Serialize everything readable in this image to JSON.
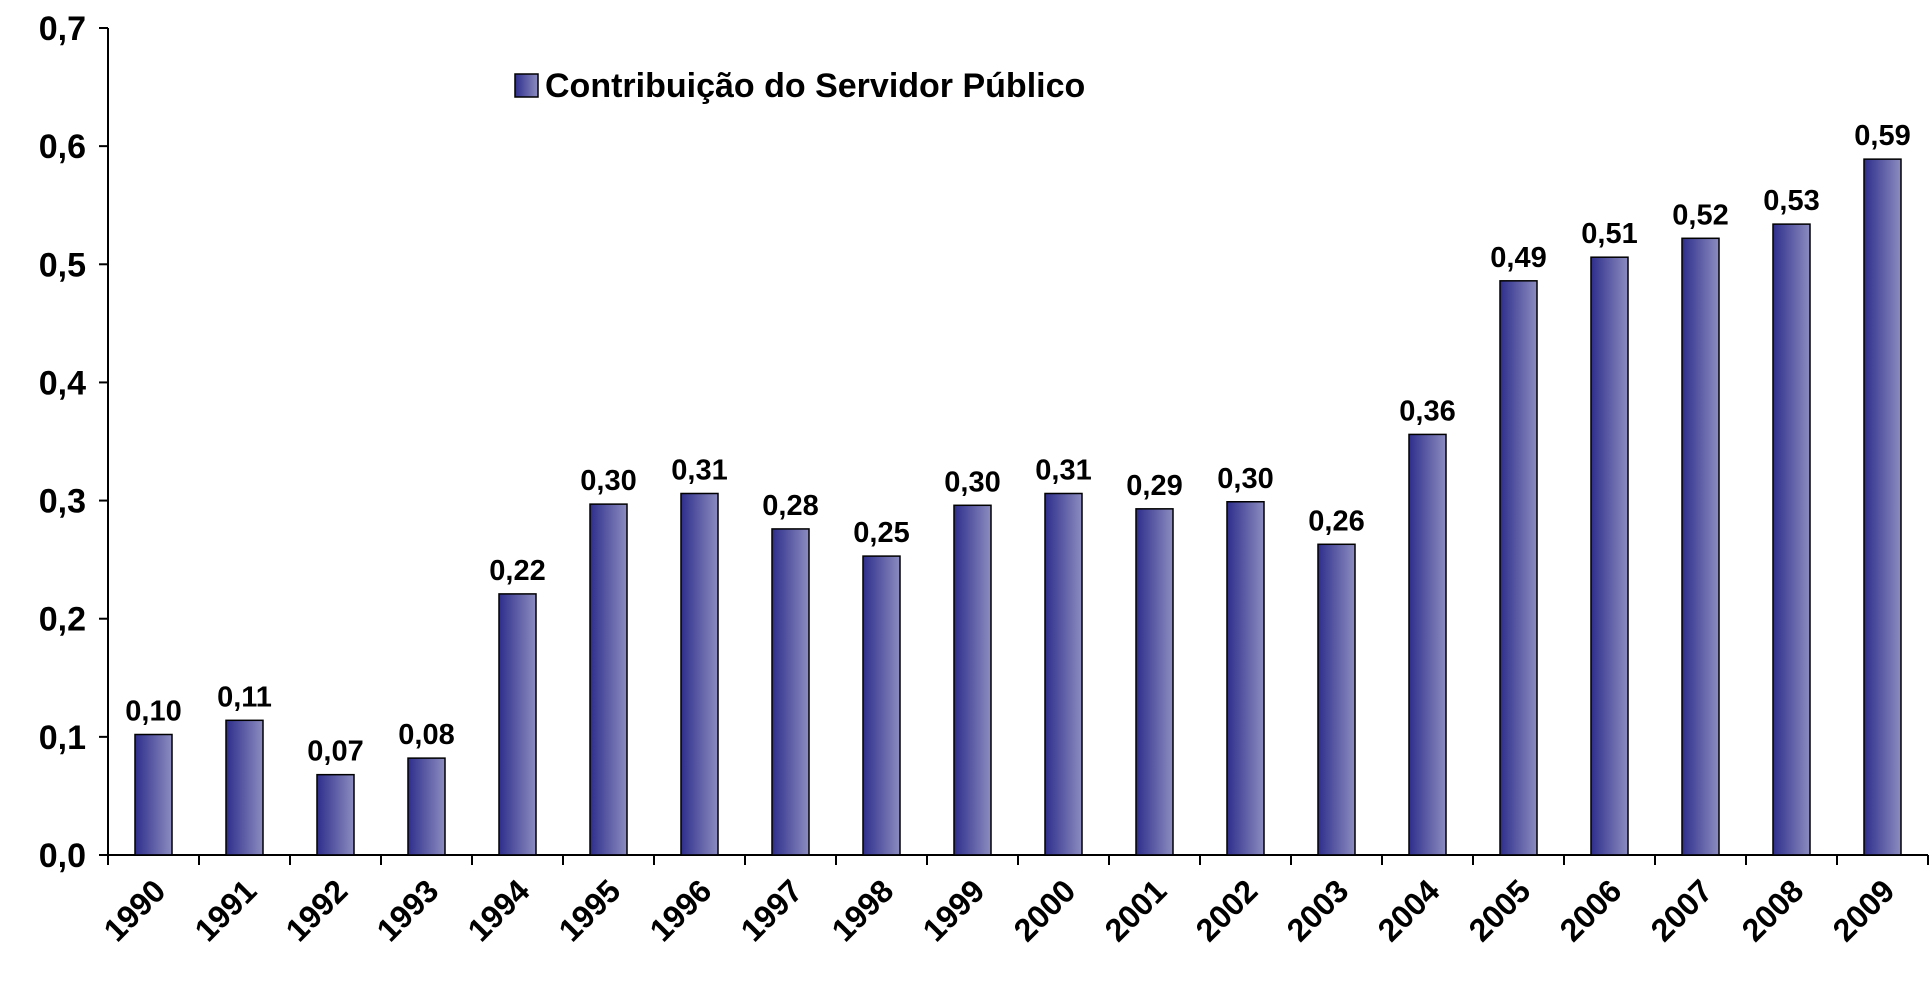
{
  "chart_data": {
    "type": "bar",
    "categories": [
      "1990",
      "1991",
      "1992",
      "1993",
      "1994",
      "1995",
      "1996",
      "1997",
      "1998",
      "1999",
      "2000",
      "2001",
      "2002",
      "2003",
      "2004",
      "2005",
      "2006",
      "2007",
      "2008",
      "2009"
    ],
    "series": [
      {
        "name": "Contribuição do Servidor Público",
        "color": "#2e2e8c",
        "values": [
          0.102,
          0.114,
          0.068,
          0.082,
          0.221,
          0.297,
          0.306,
          0.276,
          0.253,
          0.296,
          0.306,
          0.293,
          0.299,
          0.263,
          0.356,
          0.486,
          0.506,
          0.522,
          0.534,
          0.589
        ],
        "value_labels": [
          "0,10",
          "0,11",
          "0,07",
          "0,08",
          "0,22",
          "0,30",
          "0,31",
          "0,28",
          "0,25",
          "0,30",
          "0,31",
          "0,29",
          "0,30",
          "0,26",
          "0,36",
          "0,49",
          "0,51",
          "0,52",
          "0,53",
          "0,59"
        ]
      }
    ],
    "ylim": [
      0,
      0.7
    ],
    "yticks": [
      {
        "value": 0,
        "label": "0,0"
      },
      {
        "value": 0.1,
        "label": "0,1"
      },
      {
        "value": 0.2,
        "label": "0,2"
      },
      {
        "value": 0.3,
        "label": "0,3"
      },
      {
        "value": 0.4,
        "label": "0,4"
      },
      {
        "value": 0.5,
        "label": "0,5"
      },
      {
        "value": 0.6,
        "label": "0,6"
      },
      {
        "value": 0.7,
        "label": "0,7"
      }
    ],
    "legend": "top"
  }
}
